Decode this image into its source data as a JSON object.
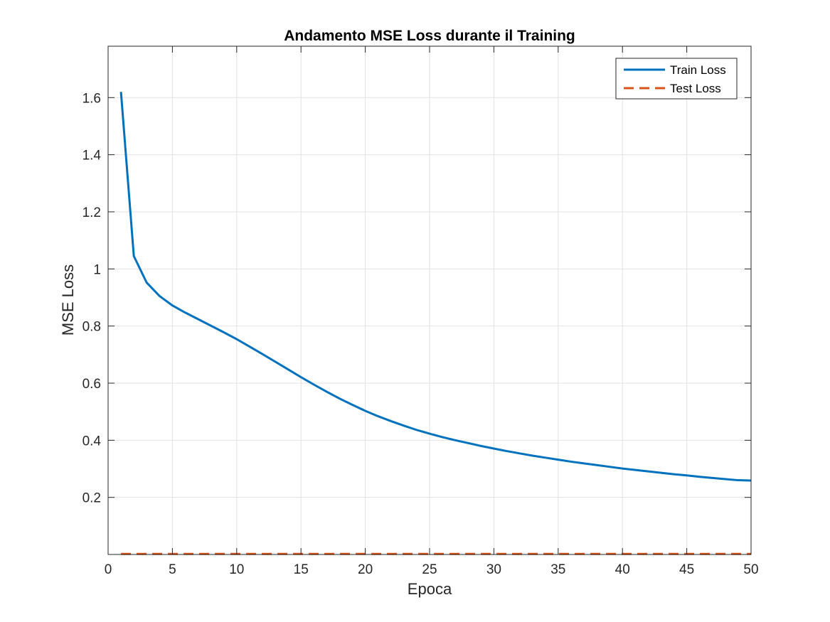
{
  "chart_data": {
    "type": "line",
    "title": "Andamento MSE Loss durante il Training",
    "xlabel": "Epoca",
    "ylabel": "MSE Loss",
    "xlim": [
      0,
      50
    ],
    "ylim": [
      0,
      1.78
    ],
    "xticks": [
      0,
      5,
      10,
      15,
      20,
      25,
      30,
      35,
      40,
      45,
      50
    ],
    "xtick_labels": [
      "0",
      "5",
      "10",
      "15",
      "20",
      "25",
      "30",
      "35",
      "40",
      "45",
      "50"
    ],
    "yticks": [
      0.2,
      0.4,
      0.6,
      0.8,
      1.0,
      1.2,
      1.4,
      1.6
    ],
    "ytick_labels": [
      "0.2",
      "0.4",
      "0.6",
      "0.8",
      "1",
      "1.2",
      "1.4",
      "1.6"
    ],
    "grid": true,
    "legend_position": "top-right",
    "series": [
      {
        "name": "Train Loss",
        "color": "#0072BD",
        "style": "solid",
        "x": [
          1,
          2,
          3,
          4,
          5,
          6,
          7,
          8,
          9,
          10,
          11,
          12,
          13,
          14,
          15,
          16,
          17,
          18,
          19,
          20,
          21,
          22,
          23,
          24,
          25,
          26,
          27,
          28,
          29,
          30,
          31,
          32,
          33,
          34,
          35,
          36,
          37,
          38,
          39,
          40,
          41,
          42,
          43,
          44,
          45,
          46,
          47,
          48,
          49,
          50
        ],
        "values": [
          1.62,
          1.045,
          0.952,
          0.905,
          0.872,
          0.847,
          0.824,
          0.801,
          0.778,
          0.754,
          0.728,
          0.702,
          0.675,
          0.648,
          0.621,
          0.595,
          0.57,
          0.546,
          0.524,
          0.503,
          0.484,
          0.467,
          0.451,
          0.436,
          0.423,
          0.411,
          0.4,
          0.39,
          0.38,
          0.371,
          0.362,
          0.354,
          0.346,
          0.339,
          0.332,
          0.325,
          0.319,
          0.313,
          0.307,
          0.301,
          0.296,
          0.291,
          0.286,
          0.281,
          0.277,
          0.272,
          0.268,
          0.264,
          0.26,
          0.259
        ]
      },
      {
        "name": "Test Loss",
        "color": "#D95319",
        "style": "dashed",
        "x": [
          1,
          50
        ],
        "values": [
          0.002,
          0.002
        ]
      }
    ]
  }
}
